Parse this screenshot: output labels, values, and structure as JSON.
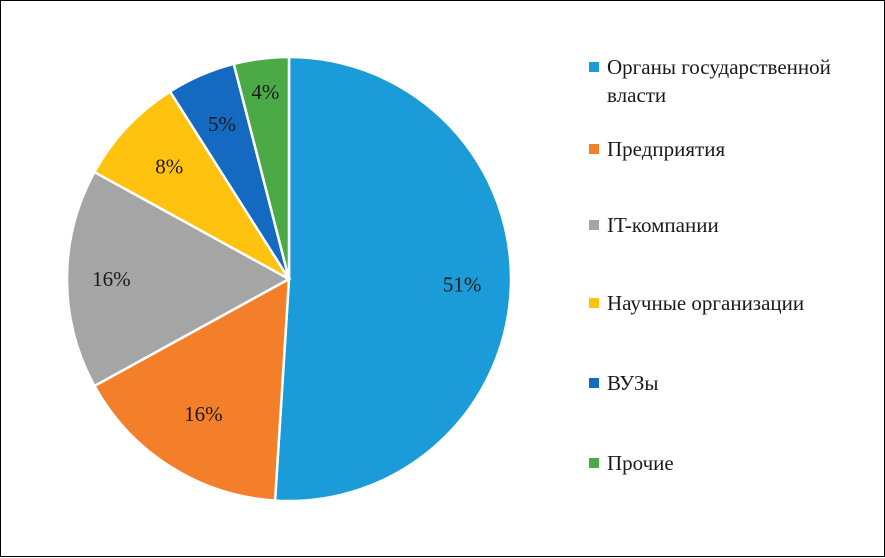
{
  "chart_data": {
    "type": "pie",
    "title": "",
    "legend_position": "right",
    "slices": [
      {
        "label": "Органы государственной власти",
        "value": 51,
        "value_label": "51%",
        "color": "#1B9BD7"
      },
      {
        "label": "Предприятия",
        "value": 16,
        "value_label": "16%",
        "color": "#F47F2A"
      },
      {
        "label": "IT-компании",
        "value": 16,
        "value_label": "16%",
        "color": "#A5A5A5"
      },
      {
        "label": "Научные организации",
        "value": 8,
        "value_label": "8%",
        "color": "#FFC20E"
      },
      {
        "label": "ВУЗы",
        "value": 5,
        "value_label": "5%",
        "color": "#1469C0"
      },
      {
        "label": "Прочие",
        "value": 4,
        "value_label": "4%",
        "color": "#4BAA46"
      }
    ]
  }
}
